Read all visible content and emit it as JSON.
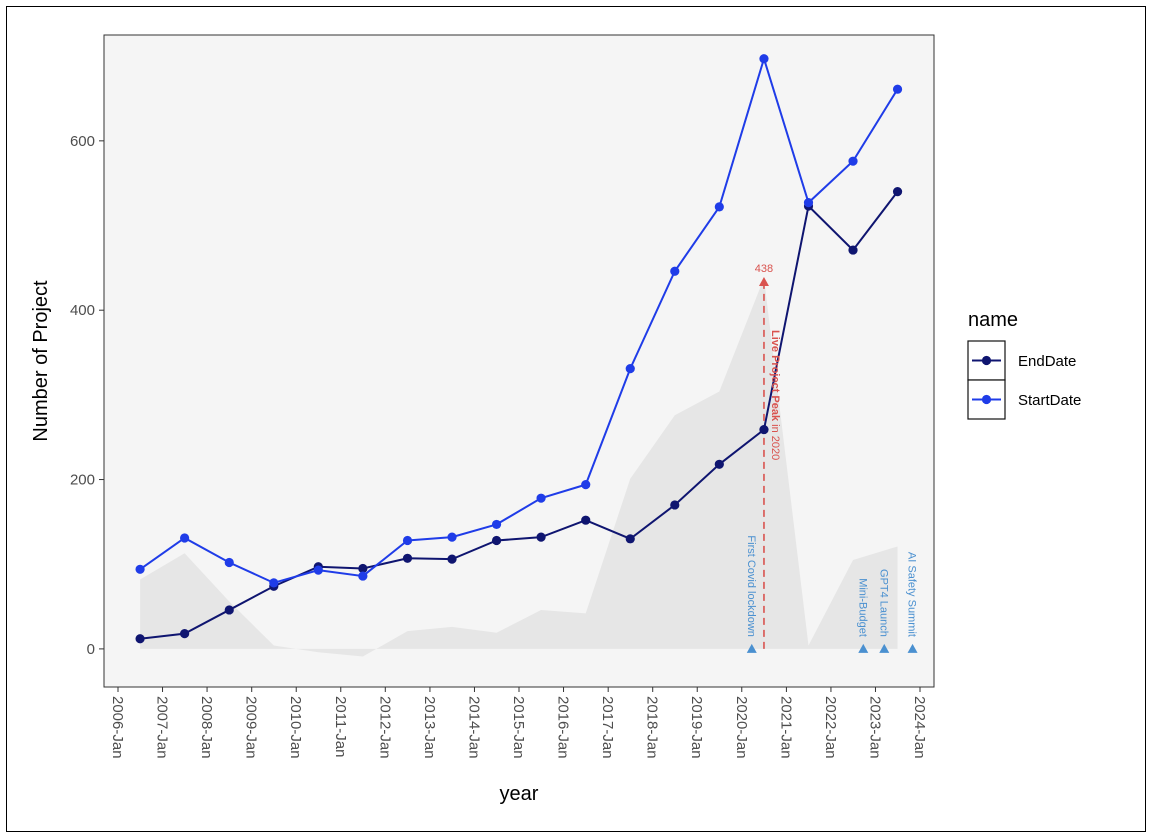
{
  "chart_data": {
    "type": "line",
    "xlabel": "year",
    "ylabel": "Number of Project",
    "x_ticks": [
      "2006-Jan",
      "2007-Jan",
      "2008-Jan",
      "2009-Jan",
      "2010-Jan",
      "2011-Jan",
      "2012-Jan",
      "2013-Jan",
      "2014-Jan",
      "2015-Jan",
      "2016-Jan",
      "2017-Jan",
      "2018-Jan",
      "2019-Jan",
      "2020-Jan",
      "2021-Jan",
      "2022-Jan",
      "2023-Jan",
      "2024-Jan"
    ],
    "y_ticks": [
      0,
      200,
      400,
      600
    ],
    "ylim": [
      -45,
      725
    ],
    "xlim": [
      "2006-01-01",
      "2024-01-01"
    ],
    "grid": false,
    "legend": {
      "title": "name",
      "position": "right"
    },
    "series": [
      {
        "name": "EndDate",
        "color": "#0f1570",
        "points": [
          {
            "x": "2006-07-01",
            "y": 12
          },
          {
            "x": "2007-07-01",
            "y": 18
          },
          {
            "x": "2008-07-01",
            "y": 46
          },
          {
            "x": "2009-07-01",
            "y": 74
          },
          {
            "x": "2010-07-01",
            "y": 97
          },
          {
            "x": "2011-07-01",
            "y": 95
          },
          {
            "x": "2012-07-01",
            "y": 107
          },
          {
            "x": "2013-07-01",
            "y": 106
          },
          {
            "x": "2014-07-01",
            "y": 128
          },
          {
            "x": "2015-07-01",
            "y": 132
          },
          {
            "x": "2016-07-01",
            "y": 152
          },
          {
            "x": "2017-07-01",
            "y": 130
          },
          {
            "x": "2018-07-01",
            "y": 170
          },
          {
            "x": "2019-07-01",
            "y": 218
          },
          {
            "x": "2020-07-01",
            "y": 259
          },
          {
            "x": "2021-07-01",
            "y": 523
          },
          {
            "x": "2022-07-01",
            "y": 471
          },
          {
            "x": "2023-07-01",
            "y": 540
          }
        ]
      },
      {
        "name": "StartDate",
        "color": "#1f3ce8",
        "points": [
          {
            "x": "2006-07-01",
            "y": 94
          },
          {
            "x": "2007-07-01",
            "y": 131
          },
          {
            "x": "2008-07-01",
            "y": 102
          },
          {
            "x": "2009-07-01",
            "y": 78
          },
          {
            "x": "2010-07-01",
            "y": 93
          },
          {
            "x": "2011-07-01",
            "y": 86
          },
          {
            "x": "2012-07-01",
            "y": 128
          },
          {
            "x": "2013-07-01",
            "y": 132
          },
          {
            "x": "2014-07-01",
            "y": 147
          },
          {
            "x": "2015-07-01",
            "y": 178
          },
          {
            "x": "2016-07-01",
            "y": 194
          },
          {
            "x": "2017-07-01",
            "y": 331
          },
          {
            "x": "2018-07-01",
            "y": 446
          },
          {
            "x": "2019-07-01",
            "y": 522
          },
          {
            "x": "2020-07-01",
            "y": 697
          },
          {
            "x": "2021-07-01",
            "y": 527
          },
          {
            "x": "2022-07-01",
            "y": 576
          },
          {
            "x": "2023-07-01",
            "y": 661
          }
        ]
      }
    ],
    "area": {
      "color": "#e6e6e6",
      "points": [
        {
          "x": "2006-07-01",
          "y": 82
        },
        {
          "x": "2007-07-01",
          "y": 113
        },
        {
          "x": "2008-07-01",
          "y": 56
        },
        {
          "x": "2009-07-01",
          "y": 4
        },
        {
          "x": "2010-07-01",
          "y": -4
        },
        {
          "x": "2011-07-01",
          "y": -9
        },
        {
          "x": "2012-07-01",
          "y": 21
        },
        {
          "x": "2013-07-01",
          "y": 26
        },
        {
          "x": "2014-07-01",
          "y": 19
        },
        {
          "x": "2015-07-01",
          "y": 46
        },
        {
          "x": "2016-07-01",
          "y": 42
        },
        {
          "x": "2017-07-01",
          "y": 201
        },
        {
          "x": "2018-07-01",
          "y": 276
        },
        {
          "x": "2019-07-01",
          "y": 304
        },
        {
          "x": "2020-07-01",
          "y": 438
        },
        {
          "x": "2021-07-01",
          "y": 4
        },
        {
          "x": "2022-07-01",
          "y": 105
        },
        {
          "x": "2023-07-01",
          "y": 121
        }
      ]
    },
    "events": [
      {
        "label": "First Covid lockdown",
        "x": "2020-03-23"
      },
      {
        "label": "Mini-Budget",
        "x": "2022-09-23"
      },
      {
        "label": "GPT4 Launch",
        "x": "2023-03-14"
      },
      {
        "label": "AI Safety Summit",
        "x": "2023-11-01"
      }
    ],
    "peak_annotation": {
      "x": "2020-07-01",
      "value": 438,
      "value_label": "438",
      "text_bold": "Live Project Peak",
      "text_rest": " in 2020",
      "color": "#d9534f"
    },
    "event_color": "#4a90d0"
  }
}
